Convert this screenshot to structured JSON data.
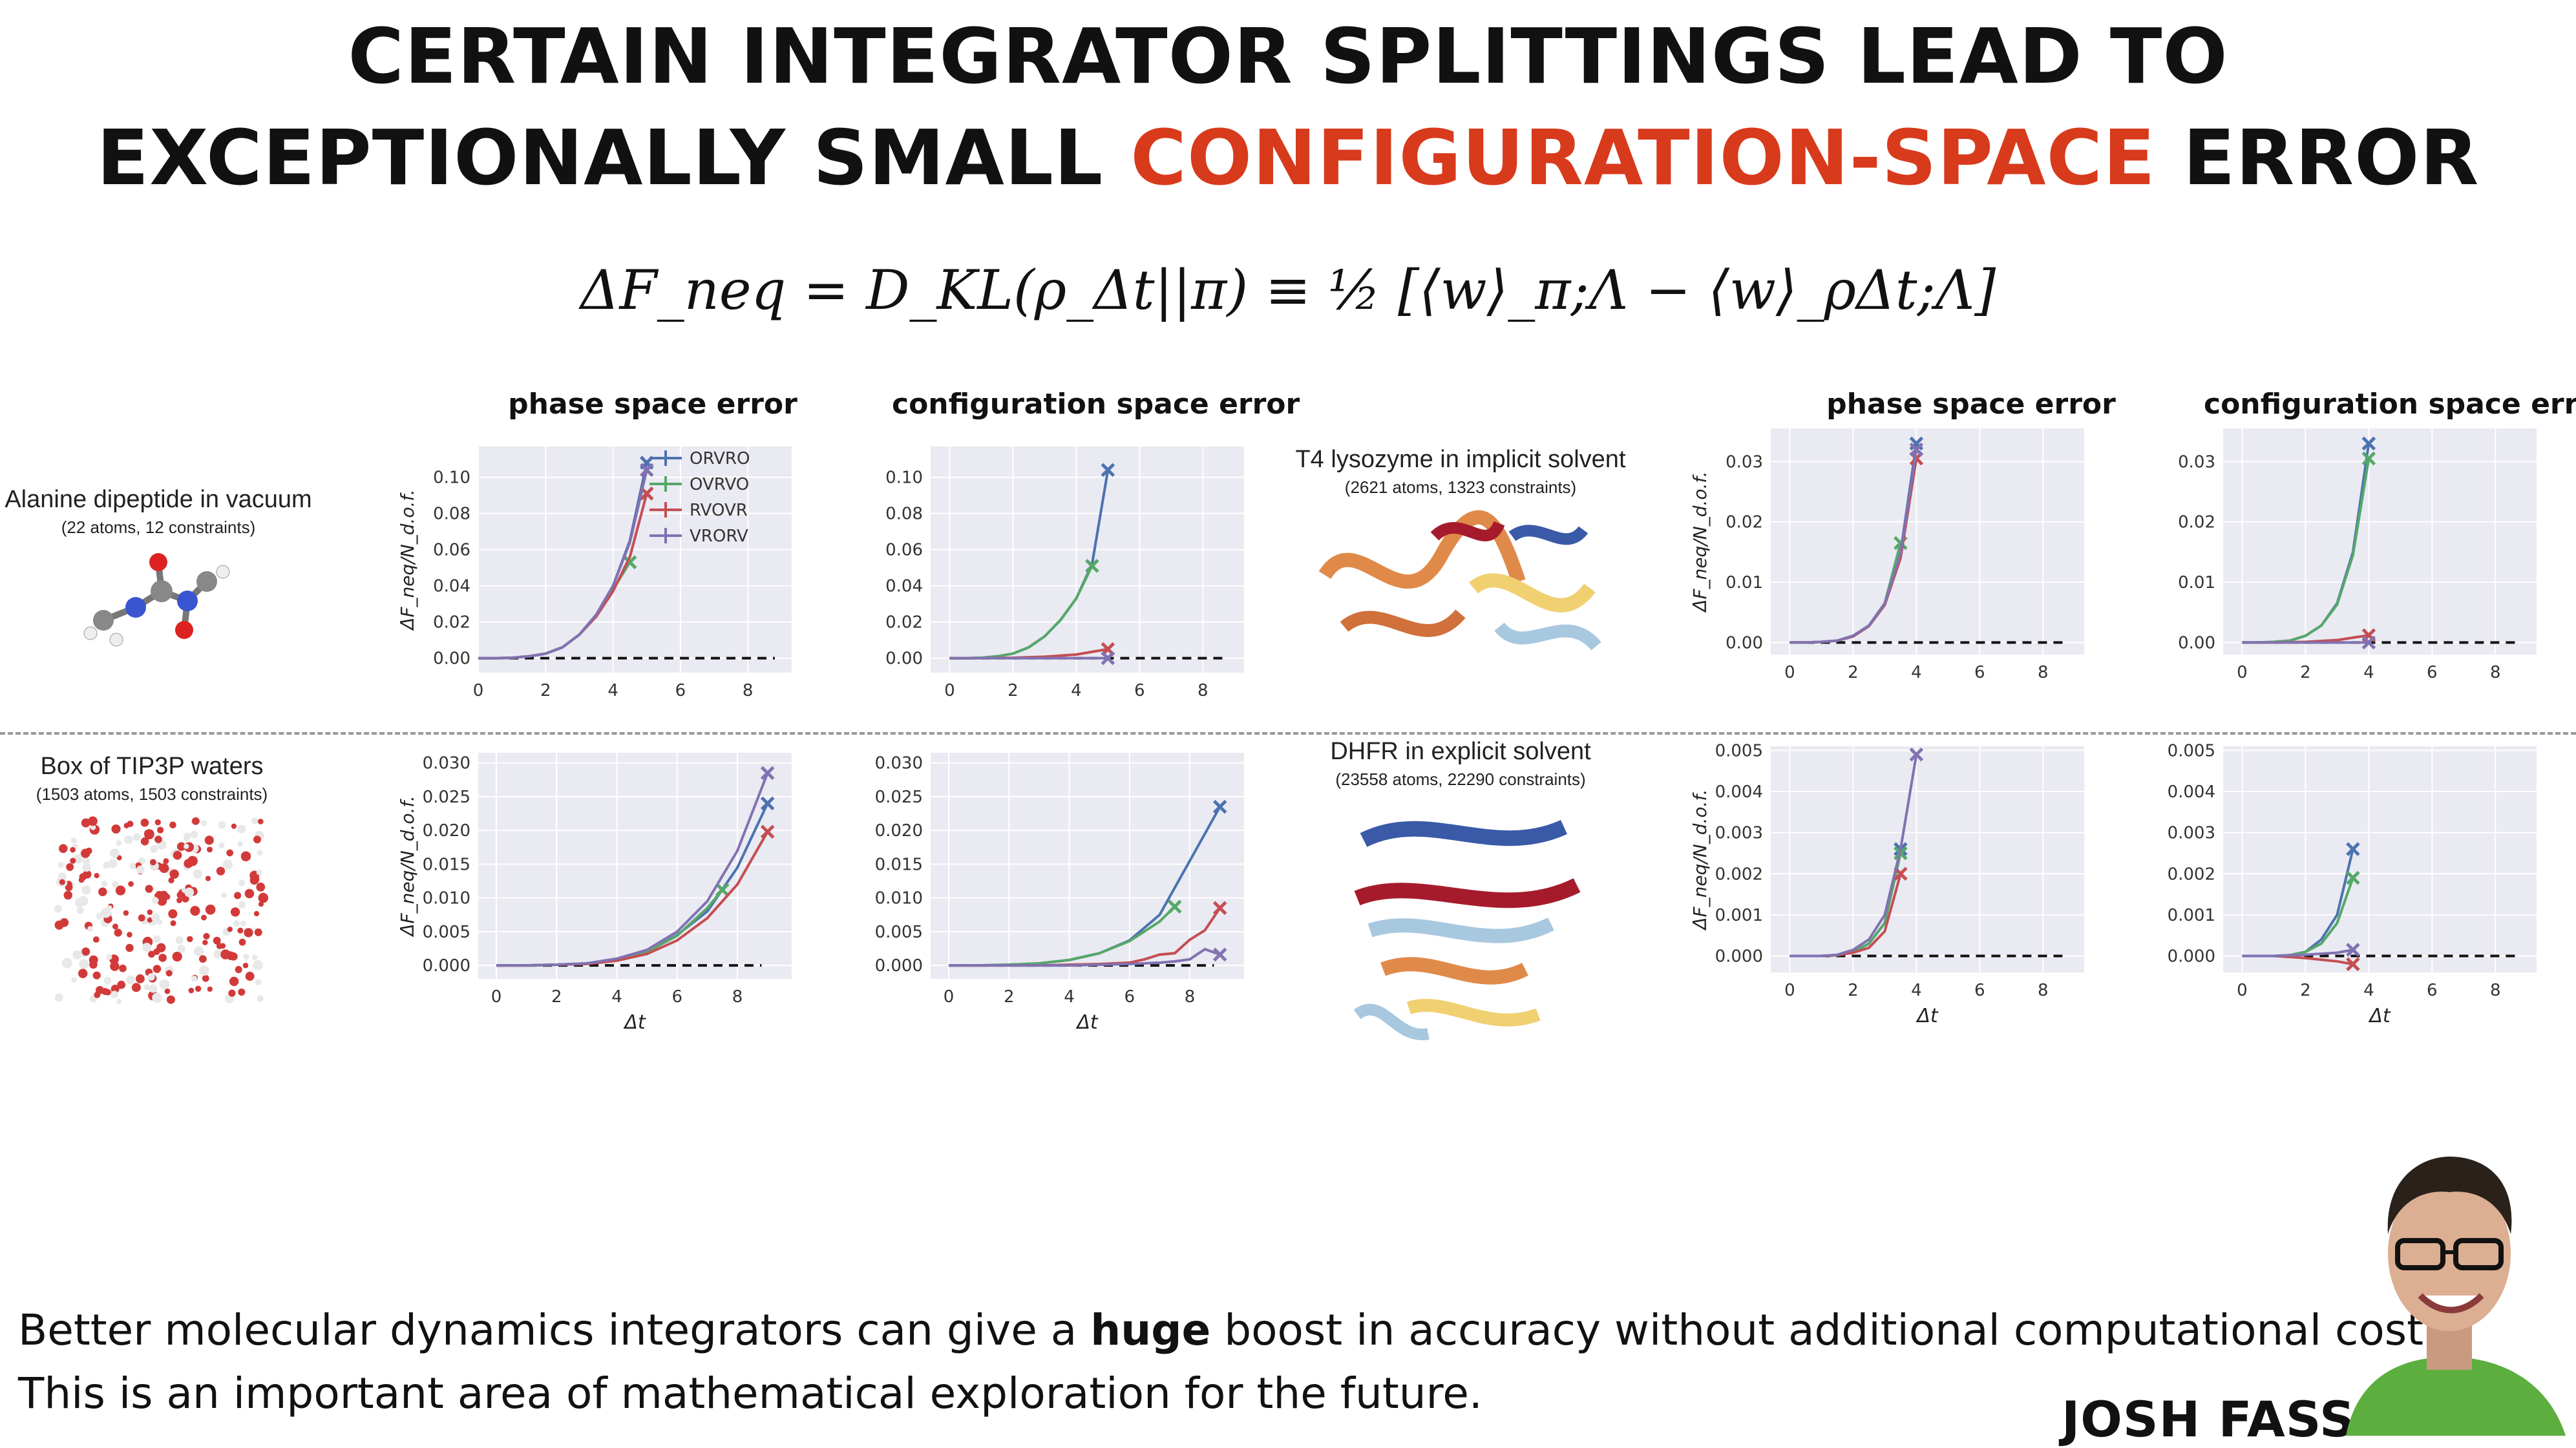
{
  "title": {
    "line1": "CERTAIN INTEGRATOR SPLITTINGS LEAD TO",
    "line2_prefix": "EXCEPTIONALLY SMALL",
    "line2_accent": "CONFIGURATION-SPACE",
    "line2_suffix": "ERROR"
  },
  "formula": "ΔF_neq = D_KL(ρ_Δt||π) ≡ ½ [⟨w⟩_π;Λ − ⟨w⟩_ρΔt;Λ]",
  "column_headers": {
    "phase": "phase space error",
    "config": "configuration space error"
  },
  "systems": {
    "alanine": {
      "name": "Alanine dipeptide in vacuum",
      "sub": "(22 atoms, 12 constraints)"
    },
    "water": {
      "name": "Box of TIP3P waters",
      "sub": "(1503 atoms, 1503 constraints)"
    },
    "t4": {
      "name": "T4 lysozyme in implicit solvent",
      "sub": "(2621 atoms, 1323 constraints)"
    },
    "dhfr": {
      "name": "DHFR in explicit solvent",
      "sub": "(23558 atoms, 22290 constraints)"
    }
  },
  "footer": {
    "line1_pre": "Better molecular dynamics integrators can give a",
    "line1_bold": "huge",
    "line1_post": "boost in accuracy without additional computational cost.",
    "line2": "This is an important area of mathematical exploration for the future."
  },
  "author": "JOSH FASS",
  "colors": {
    "accent": "#d83a1c",
    "ORVRO": "#4c72b0",
    "OVRVO": "#55a868",
    "RVOVR": "#c44e52",
    "VRORV": "#8172b2"
  },
  "chart_data": [
    {
      "id": "alanine_phase",
      "type": "line",
      "title": "phase space error",
      "xlabel": "",
      "ylabel": "ΔF_neq/N_d.o.f.",
      "xlim": [
        0,
        9.3
      ],
      "ylim": [
        -0.008,
        0.117
      ],
      "xticks": [
        "0",
        "2",
        "4",
        "6",
        "8"
      ],
      "yticks": [
        "0.00",
        "0.02",
        "0.04",
        "0.06",
        "0.08",
        "0.10"
      ],
      "legend": [
        "ORVRO",
        "OVRVO",
        "RVOVR",
        "VRORV"
      ],
      "series": [
        {
          "name": "ORVRO",
          "x": [
            0,
            0.5,
            1,
            1.5,
            2,
            2.5,
            3,
            3.5,
            4,
            4.5,
            5
          ],
          "y": [
            0,
            0,
            0.0002,
            0.001,
            0.0025,
            0.006,
            0.013,
            0.024,
            0.04,
            0.065,
            0.108
          ]
        },
        {
          "name": "OVRVO",
          "x": [
            0,
            0.5,
            1,
            1.5,
            2,
            2.5,
            3,
            3.5,
            4,
            4.5
          ],
          "y": [
            0,
            0,
            0.0002,
            0.001,
            0.0025,
            0.006,
            0.013,
            0.024,
            0.038,
            0.053
          ]
        },
        {
          "name": "RVOVR",
          "x": [
            0,
            0.5,
            1,
            1.5,
            2,
            2.5,
            3,
            3.5,
            4,
            4.5,
            5
          ],
          "y": [
            0,
            0,
            0.0002,
            0.001,
            0.0025,
            0.006,
            0.013,
            0.023,
            0.037,
            0.056,
            0.091
          ]
        },
        {
          "name": "VRORV",
          "x": [
            0,
            0.5,
            1,
            1.5,
            2,
            2.5,
            3,
            3.5,
            4,
            4.5,
            5
          ],
          "y": [
            0,
            0,
            0.0002,
            0.001,
            0.0025,
            0.006,
            0.013,
            0.024,
            0.04,
            0.064,
            0.104
          ]
        }
      ]
    },
    {
      "id": "alanine_config",
      "type": "line",
      "title": "configuration space error",
      "xlabel": "",
      "ylabel": "",
      "xlim": [
        -0.6,
        9.3
      ],
      "ylim": [
        -0.008,
        0.117
      ],
      "xticks": [
        "0",
        "2",
        "4",
        "6",
        "8"
      ],
      "yticks": [
        "0.00",
        "0.02",
        "0.04",
        "0.06",
        "0.08",
        "0.10"
      ],
      "series": [
        {
          "name": "ORVRO",
          "x": [
            0,
            0.5,
            1,
            1.5,
            2,
            2.5,
            3,
            3.5,
            4,
            4.5,
            5
          ],
          "y": [
            0,
            0,
            0.0002,
            0.001,
            0.0025,
            0.006,
            0.012,
            0.021,
            0.033,
            0.052,
            0.104
          ]
        },
        {
          "name": "OVRVO",
          "x": [
            0,
            0.5,
            1,
            1.5,
            2,
            2.5,
            3,
            3.5,
            4,
            4.5
          ],
          "y": [
            0,
            0,
            0.0002,
            0.001,
            0.0025,
            0.006,
            0.012,
            0.021,
            0.033,
            0.051
          ]
        },
        {
          "name": "RVOVR",
          "x": [
            0,
            1,
            2,
            3,
            4,
            5
          ],
          "y": [
            0,
            0,
            0.0002,
            0.0008,
            0.002,
            0.005
          ]
        },
        {
          "name": "VRORV",
          "x": [
            0,
            1,
            2,
            3,
            4,
            5
          ],
          "y": [
            0,
            0,
            0,
            0,
            0,
            0
          ]
        }
      ]
    },
    {
      "id": "t4_phase",
      "type": "line",
      "title": "phase space error",
      "xlabel": "",
      "ylabel": "ΔF_neq/N_d.o.f.",
      "xlim": [
        -0.6,
        9.3
      ],
      "ylim": [
        -0.002,
        0.0355
      ],
      "xticks": [
        "0",
        "2",
        "4",
        "6",
        "8"
      ],
      "yticks": [
        "0.00",
        "0.01",
        "0.02",
        "0.03"
      ],
      "series": [
        {
          "name": "ORVRO",
          "x": [
            0,
            0.5,
            1,
            1.5,
            2,
            2.5,
            3,
            3.5,
            4
          ],
          "y": [
            0,
            0,
            0.0001,
            0.0003,
            0.0011,
            0.0028,
            0.0065,
            0.015,
            0.033
          ]
        },
        {
          "name": "OVRVO",
          "x": [
            0,
            0.5,
            1,
            1.5,
            2,
            2.5,
            3,
            3.5
          ],
          "y": [
            0,
            0,
            0.0001,
            0.0003,
            0.0011,
            0.0028,
            0.0065,
            0.0165
          ]
        },
        {
          "name": "RVOVR",
          "x": [
            0,
            0.5,
            1,
            1.5,
            2,
            2.5,
            3,
            3.5,
            4
          ],
          "y": [
            0,
            0,
            0.0001,
            0.0003,
            0.001,
            0.0027,
            0.0062,
            0.014,
            0.0305
          ]
        },
        {
          "name": "VRORV",
          "x": [
            0,
            0.5,
            1,
            1.5,
            2,
            2.5,
            3,
            3.5,
            4
          ],
          "y": [
            0,
            0,
            0.0001,
            0.0003,
            0.0011,
            0.0028,
            0.0064,
            0.0148,
            0.032
          ]
        }
      ]
    },
    {
      "id": "t4_config",
      "type": "line",
      "title": "configuration space error",
      "xlabel": "",
      "ylabel": "",
      "xlim": [
        -0.6,
        9.3
      ],
      "ylim": [
        -0.002,
        0.0355
      ],
      "xticks": [
        "0",
        "2",
        "4",
        "6",
        "8"
      ],
      "yticks": [
        "0.00",
        "0.01",
        "0.02",
        "0.03"
      ],
      "series": [
        {
          "name": "ORVRO",
          "x": [
            0,
            0.5,
            1,
            1.5,
            2,
            2.5,
            3,
            3.5,
            4
          ],
          "y": [
            0,
            0,
            0.0001,
            0.0003,
            0.0011,
            0.0028,
            0.0065,
            0.015,
            0.033
          ]
        },
        {
          "name": "OVRVO",
          "x": [
            0,
            0.5,
            1,
            1.5,
            2,
            2.5,
            3,
            3.5,
            4
          ],
          "y": [
            0,
            0,
            0.0001,
            0.0003,
            0.0011,
            0.0028,
            0.0063,
            0.0145,
            0.0305
          ]
        },
        {
          "name": "RVOVR",
          "x": [
            0,
            1,
            2,
            3,
            4
          ],
          "y": [
            0,
            0,
            0.0001,
            0.0004,
            0.0012
          ]
        },
        {
          "name": "VRORV",
          "x": [
            0,
            1,
            2,
            3,
            4
          ],
          "y": [
            0,
            0,
            0,
            0,
            0
          ]
        }
      ]
    },
    {
      "id": "water_phase",
      "type": "line",
      "title": "",
      "xlabel": "Δt",
      "ylabel": "ΔF_neq/N_d.o.f.",
      "xlim": [
        -0.6,
        9.8
      ],
      "ylim": [
        -0.002,
        0.0315
      ],
      "xticks": [
        "0",
        "2",
        "4",
        "6",
        "8"
      ],
      "yticks": [
        "0.000",
        "0.005",
        "0.010",
        "0.015",
        "0.020",
        "0.025",
        "0.030"
      ],
      "series": [
        {
          "name": "ORVRO",
          "x": [
            0,
            1,
            2,
            3,
            4,
            5,
            6,
            7,
            8,
            9
          ],
          "y": [
            0,
            0,
            0.0001,
            0.0003,
            0.0009,
            0.002,
            0.0045,
            0.008,
            0.0145,
            0.024
          ]
        },
        {
          "name": "OVRVO",
          "x": [
            0,
            1,
            2,
            3,
            4,
            5,
            6,
            7,
            7.5
          ],
          "y": [
            0,
            0,
            0.0001,
            0.0003,
            0.0009,
            0.002,
            0.0044,
            0.0085,
            0.0112
          ]
        },
        {
          "name": "RVOVR",
          "x": [
            0,
            1,
            2,
            3,
            4,
            5,
            6,
            7,
            8,
            9
          ],
          "y": [
            0,
            0,
            0.0001,
            0.0002,
            0.0007,
            0.0017,
            0.0037,
            0.007,
            0.012,
            0.0198
          ]
        },
        {
          "name": "VRORV",
          "x": [
            0,
            1,
            2,
            3,
            4,
            5,
            6,
            7,
            8,
            9
          ],
          "y": [
            0,
            0,
            0.0001,
            0.0003,
            0.001,
            0.0023,
            0.005,
            0.0095,
            0.017,
            0.0285
          ]
        }
      ]
    },
    {
      "id": "water_config",
      "type": "line",
      "title": "",
      "xlabel": "Δt",
      "ylabel": "",
      "xlim": [
        -0.6,
        9.8
      ],
      "ylim": [
        -0.002,
        0.0315
      ],
      "xticks": [
        "0",
        "2",
        "4",
        "6",
        "8"
      ],
      "yticks": [
        "0.000",
        "0.005",
        "0.010",
        "0.015",
        "0.020",
        "0.025",
        "0.030"
      ],
      "series": [
        {
          "name": "ORVRO",
          "x": [
            0,
            1,
            2,
            3,
            4,
            5,
            6,
            7,
            8,
            9
          ],
          "y": [
            0,
            0,
            0.0001,
            0.0003,
            0.0008,
            0.0018,
            0.0037,
            0.0075,
            0.0155,
            0.0235
          ]
        },
        {
          "name": "OVRVO",
          "x": [
            0,
            1,
            2,
            3,
            4,
            5,
            6,
            7,
            7.5
          ],
          "y": [
            0,
            0,
            0.0001,
            0.0003,
            0.0008,
            0.0018,
            0.0036,
            0.0065,
            0.0087
          ]
        },
        {
          "name": "RVOVR",
          "x": [
            0,
            1,
            2,
            3,
            4,
            5,
            6,
            6.5,
            7,
            7.5,
            8,
            8.5,
            9
          ],
          "y": [
            0,
            0,
            0,
            0,
            0.0001,
            0.0002,
            0.0004,
            0.0009,
            0.0016,
            0.0018,
            0.0038,
            0.0052,
            0.0085
          ]
        },
        {
          "name": "VRORV",
          "x": [
            0,
            1,
            2,
            3,
            4,
            5,
            6,
            7,
            7.5,
            8,
            8.5,
            9
          ],
          "y": [
            0,
            0,
            0,
            0,
            0,
            0.0001,
            0.0002,
            0.0004,
            0.0006,
            0.0009,
            0.0024,
            0.0016
          ]
        }
      ]
    },
    {
      "id": "dhfr_phase",
      "type": "line",
      "title": "",
      "xlabel": "Δt",
      "ylabel": "ΔF_neq/N_d.o.f.",
      "xlim": [
        -0.6,
        9.3
      ],
      "ylim": [
        -0.0004,
        0.0051
      ],
      "xticks": [
        "0",
        "2",
        "4",
        "6",
        "8"
      ],
      "yticks": [
        "0.000",
        "0.001",
        "0.002",
        "0.003",
        "0.004",
        "0.005"
      ],
      "series": [
        {
          "name": "ORVRO",
          "x": [
            0,
            1,
            1.5,
            2,
            2.5,
            3,
            3.5
          ],
          "y": [
            0,
            0,
            2e-05,
            0.0001,
            0.0003,
            0.0008,
            0.0026
          ]
        },
        {
          "name": "OVRVO",
          "x": [
            0,
            1,
            1.5,
            2,
            2.5,
            3,
            3.5
          ],
          "y": [
            0,
            0,
            2e-05,
            0.0001,
            0.0003,
            0.0008,
            0.0025
          ]
        },
        {
          "name": "RVOVR",
          "x": [
            0,
            1,
            1.5,
            2,
            2.5,
            3,
            3.5
          ],
          "y": [
            0,
            0,
            2e-05,
            8e-05,
            0.0002,
            0.0006,
            0.002
          ]
        },
        {
          "name": "VRORV",
          "x": [
            0,
            1,
            1.5,
            2,
            2.5,
            3,
            3.5,
            4
          ],
          "y": [
            0,
            0,
            3e-05,
            0.00015,
            0.0004,
            0.001,
            0.0026,
            0.0049
          ]
        }
      ]
    },
    {
      "id": "dhfr_config",
      "type": "line",
      "title": "",
      "xlabel": "Δt",
      "ylabel": "",
      "xlim": [
        -0.6,
        9.3
      ],
      "ylim": [
        -0.0004,
        0.0051
      ],
      "xticks": [
        "0",
        "2",
        "4",
        "6",
        "8"
      ],
      "yticks": [
        "0.000",
        "0.001",
        "0.002",
        "0.003",
        "0.004",
        "0.005"
      ],
      "series": [
        {
          "name": "ORVRO",
          "x": [
            0,
            1,
            1.5,
            2,
            2.5,
            3,
            3.5
          ],
          "y": [
            0,
            0,
            2e-05,
            0.0001,
            0.0004,
            0.001,
            0.0026
          ]
        },
        {
          "name": "OVRVO",
          "x": [
            0,
            1,
            1.5,
            2,
            2.5,
            3,
            3.5
          ],
          "y": [
            0,
            0,
            2e-05,
            0.0001,
            0.0003,
            0.0008,
            0.0019
          ]
        },
        {
          "name": "RVOVR",
          "x": [
            0,
            1,
            2,
            3,
            3.5
          ],
          "y": [
            0,
            0,
            -5e-05,
            -0.00013,
            -0.0002
          ]
        },
        {
          "name": "VRORV",
          "x": [
            0,
            1,
            2,
            3,
            3.5
          ],
          "y": [
            0,
            0,
            3e-05,
            8e-05,
            0.00015
          ]
        }
      ]
    }
  ]
}
